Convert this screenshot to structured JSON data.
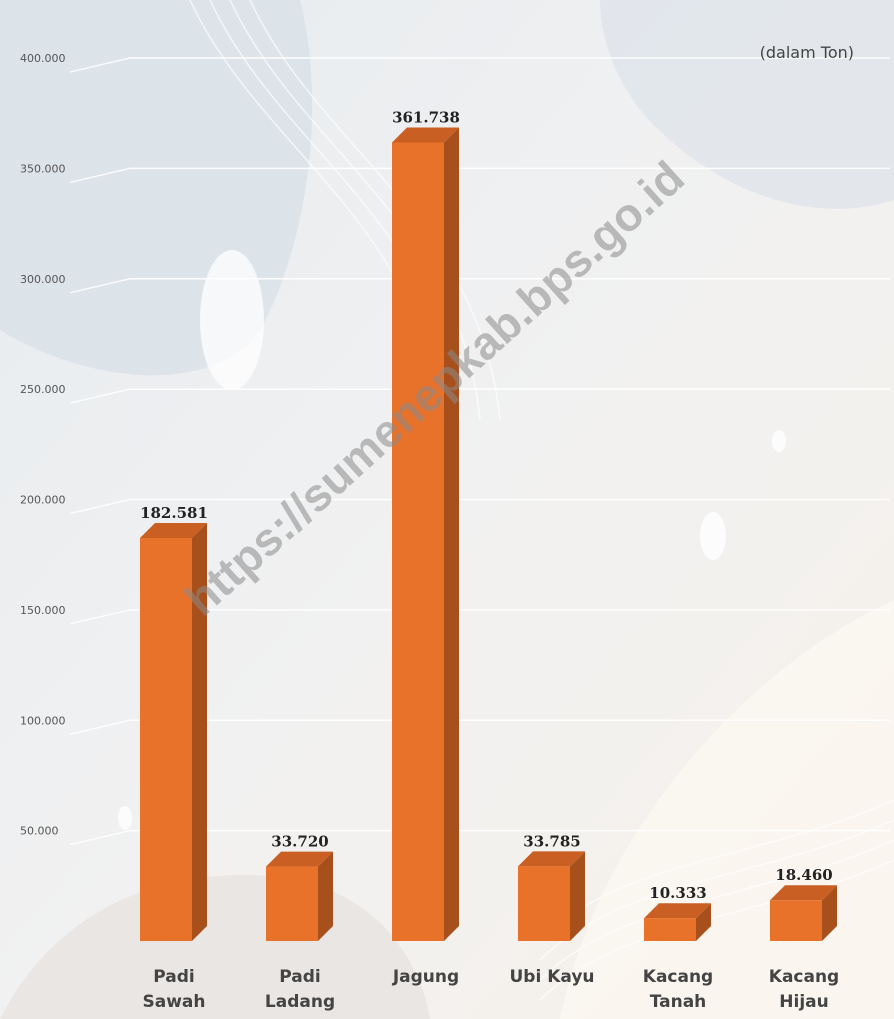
{
  "chart_data": {
    "type": "bar",
    "unit_note": "(dalam Ton)",
    "categories": [
      [
        "Padi",
        "Sawah"
      ],
      [
        "Padi",
        "Ladang"
      ],
      [
        "Jagung"
      ],
      [
        "Ubi Kayu"
      ],
      [
        "Kacang",
        "Tanah"
      ],
      [
        "Kacang",
        "Hijau"
      ]
    ],
    "values": [
      182581,
      33720,
      361738,
      33785,
      10333,
      18460
    ],
    "value_labels": [
      "182.581",
      "33.720",
      "361.738",
      "33.785",
      "10.333",
      "18.460"
    ],
    "y_ticks": [
      {
        "value": 50000,
        "label": "50.000"
      },
      {
        "value": 100000,
        "label": "100.000"
      },
      {
        "value": 150000,
        "label": "150.000"
      },
      {
        "value": 200000,
        "label": "200.000"
      },
      {
        "value": 250000,
        "label": "250.000"
      },
      {
        "value": 300000,
        "label": "300.000"
      },
      {
        "value": 350000,
        "label": "350.000"
      },
      {
        "value": 400000,
        "label": "400.000"
      }
    ],
    "ylim": [
      0,
      400000
    ],
    "grid": true,
    "bar_color": "#E8722A",
    "bar_side_color": "#A8501C",
    "bar_top_color": "#C95F22"
  },
  "watermark": "https://sumenepkab.bps.go.id"
}
